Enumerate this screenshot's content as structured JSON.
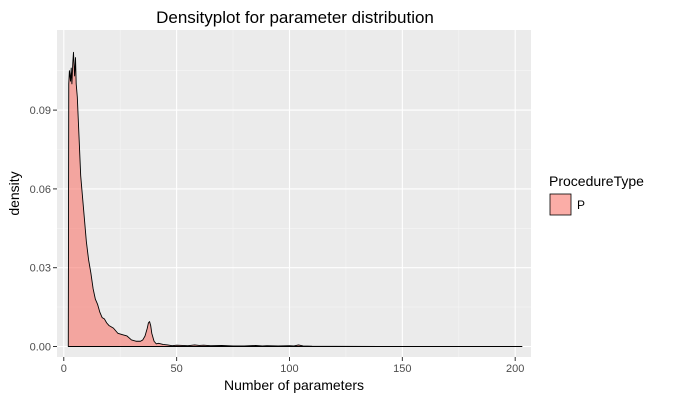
{
  "chart_data": {
    "type": "area",
    "title": "Densityplot for parameter distribution",
    "xlabel": "Number of parameters",
    "ylabel": "density",
    "xlim": [
      -3,
      207
    ],
    "ylim": [
      -0.004,
      0.1205
    ],
    "x_ticks": [
      0,
      50,
      100,
      150,
      200
    ],
    "x_tick_labels": [
      "0",
      "50",
      "100",
      "150",
      "200"
    ],
    "y_ticks": [
      0.0,
      0.03,
      0.06,
      0.09
    ],
    "y_tick_labels": [
      "0.00",
      "0.03",
      "0.06",
      "0.09"
    ],
    "grid": true,
    "legend_position": "right",
    "legend": {
      "title": "ProcedureType",
      "entries": [
        {
          "label": "P",
          "color": "#f8766d"
        }
      ]
    },
    "series": [
      {
        "name": "P",
        "color": "#f8766d",
        "outline": "#000000",
        "x": [
          2,
          2.2,
          2.5,
          3,
          3.3,
          3.6,
          4,
          4.3,
          4.8,
          5.2,
          5.5,
          6,
          6.5,
          7,
          7.5,
          8,
          9,
          10,
          11,
          12,
          13,
          14,
          15,
          16,
          17,
          18,
          19,
          20,
          22,
          24,
          26,
          28,
          30,
          32,
          34,
          35,
          36,
          37,
          37.5,
          38,
          38.5,
          39,
          40,
          41,
          42,
          44,
          46,
          48,
          50,
          55,
          58,
          60,
          62,
          65,
          70,
          75,
          80,
          85,
          88,
          90,
          95,
          100,
          102,
          104,
          105,
          106,
          110,
          120,
          140,
          160,
          180,
          200,
          203
        ],
        "y": [
          0.0,
          0.1,
          0.105,
          0.101,
          0.106,
          0.1,
          0.108,
          0.112,
          0.103,
          0.11,
          0.1,
          0.095,
          0.085,
          0.075,
          0.065,
          0.06,
          0.05,
          0.04,
          0.033,
          0.028,
          0.022,
          0.018,
          0.016,
          0.013,
          0.011,
          0.0105,
          0.009,
          0.008,
          0.007,
          0.005,
          0.0045,
          0.004,
          0.0025,
          0.002,
          0.002,
          0.0025,
          0.004,
          0.007,
          0.009,
          0.0095,
          0.008,
          0.005,
          0.002,
          0.001,
          0.0012,
          0.0008,
          0.0006,
          0.0003,
          0.0005,
          0.0003,
          0.0006,
          0.0004,
          0.0005,
          0.0003,
          0.0004,
          0.0002,
          0.0002,
          0.0004,
          0.0002,
          0.0003,
          0.0002,
          0.0003,
          0.0002,
          0.0006,
          0.0004,
          0.0002,
          0.0001,
          5e-05,
          3e-05,
          2e-05,
          1e-05,
          1e-05,
          0.0
        ]
      }
    ]
  }
}
